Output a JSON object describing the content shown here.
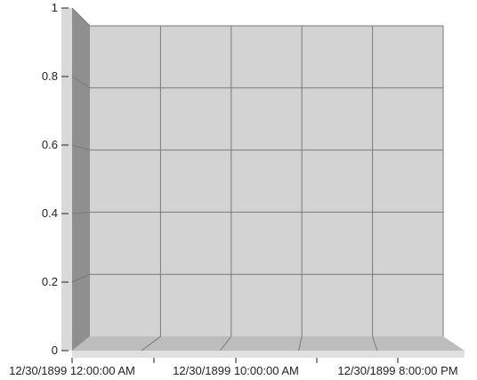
{
  "chart_data": {
    "type": "bar",
    "title": "",
    "xlabel": "",
    "ylabel": "",
    "categories": [],
    "series": [],
    "ylim": [
      0,
      1
    ],
    "yticks": [
      {
        "value": 0,
        "label": "0"
      },
      {
        "value": 0.2,
        "label": "0.2"
      },
      {
        "value": 0.4,
        "label": "0.4"
      },
      {
        "value": 0.6,
        "label": "0.6"
      },
      {
        "value": 0.8,
        "label": "0.8"
      },
      {
        "value": 1,
        "label": "1"
      }
    ],
    "xticks": [
      {
        "label": "12/30/1899 12:00:00 AM"
      },
      {
        "label": "12/30/1899 10:00:00 AM"
      },
      {
        "label": "12/30/1899 8:00:00 PM"
      }
    ],
    "x_gridlines": 4,
    "grid": true,
    "style": "3d",
    "colors": {
      "back_wall": "#d3d3d3",
      "side_wall": "#8f8f8f",
      "floor": "#bdbdbd",
      "floor_front": "#e0e0e0",
      "axis_strip": "#d9d9d9",
      "grid": "#7a7a7a",
      "axis": "#222222"
    }
  }
}
